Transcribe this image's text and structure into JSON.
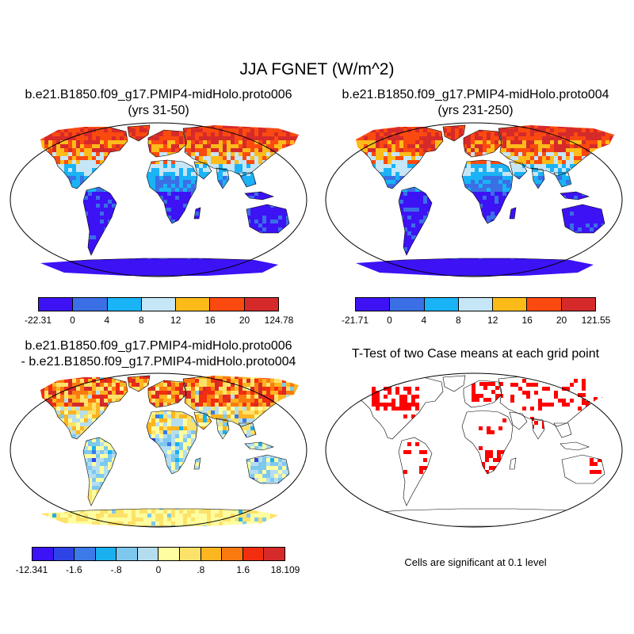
{
  "main_title": "JJA FGNET (W/m^2)",
  "panels": {
    "tl": {
      "title_line1": "b.e21.B1850.f09_g17.PMIP4-midHolo.proto006",
      "title_line2": "(yrs 31-50)"
    },
    "tr": {
      "title_line1": "b.e21.B1850.f09_g17.PMIP4-midHolo.proto004",
      "title_line2": "(yrs 231-250)"
    },
    "bl": {
      "title_line1": "b.e21.B1850.f09_g17.PMIP4-midHolo.proto006",
      "title_line2": "- b.e21.B1850.f09_g17.PMIP4-midHolo.proto004"
    },
    "br": {
      "title_line1": "T-Test of two Case means at each grid point",
      "note": "Cells are significant at 0.1 level"
    }
  },
  "colorbars": {
    "tl": {
      "labels": [
        "-22.31",
        "0",
        "4",
        "8",
        "12",
        "16",
        "20",
        "124.78"
      ],
      "colors": [
        "#3d12f5",
        "#3a6fe6",
        "#1ab3f5",
        "#c4e6f7",
        "#fdbb1a",
        "#fb4a10",
        "#d62a2a"
      ]
    },
    "tr": {
      "labels": [
        "-21.71",
        "0",
        "4",
        "8",
        "12",
        "16",
        "20",
        "121.55"
      ],
      "colors": [
        "#3d12f5",
        "#3a6fe6",
        "#1ab3f5",
        "#c4e6f7",
        "#fdbb1a",
        "#fb4a10",
        "#d62a2a"
      ]
    },
    "bl": {
      "labels": [
        "-12.341",
        "-1.6",
        "-.8",
        "0",
        ".8",
        "1.6",
        "18.109"
      ],
      "colors": [
        "#3d12f5",
        "#2f44e6",
        "#3b7ae8",
        "#1ab0f0",
        "#7ec8ee",
        "#b4def0",
        "#fefea0",
        "#fde26a",
        "#fdb520",
        "#fb7a10",
        "#f32d0f",
        "#d62a2a"
      ]
    }
  },
  "colors": {
    "significant": "#ff0000",
    "ocean": "#ffffff",
    "land_outline": "#000000"
  }
}
